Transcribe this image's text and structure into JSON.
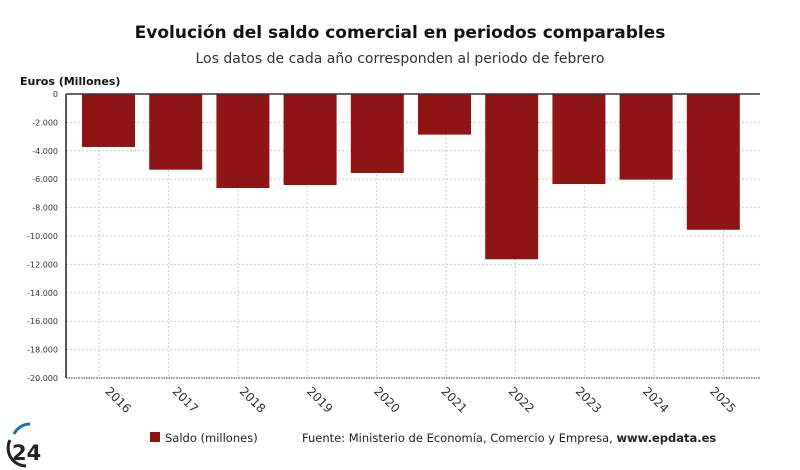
{
  "chart_data": {
    "type": "bar",
    "title": "Evolución del saldo comercial en periodos comparables",
    "subtitle": "Los datos de cada año corresponden al periodo de febrero",
    "ylabel": "Euros (Millones)",
    "xlabel": "",
    "categories": [
      "2016",
      "2017",
      "2018",
      "2019",
      "2020",
      "2021",
      "2022",
      "2023",
      "2024",
      "2025"
    ],
    "series": [
      {
        "name": "Saldo (millones)",
        "color": "#8e1416",
        "values": [
          -3730,
          -5330,
          -6620,
          -6410,
          -5560,
          -2860,
          -11640,
          -6340,
          -6030,
          -9560
        ]
      }
    ],
    "ylim": [
      -20000,
      0
    ],
    "yticks": [
      0,
      -2000,
      -4000,
      -6000,
      -8000,
      -10000,
      -12000,
      -14000,
      -16000,
      -18000,
      -20000
    ],
    "ytick_labels": [
      "0",
      "-2.000",
      "-4.000",
      "-6.000",
      "-8.000",
      "-10.000",
      "-12.000",
      "-14.000",
      "-16.000",
      "-18.000",
      "-20.000"
    ],
    "grid": true,
    "legend_position": "bottom",
    "source": "Fuente: Ministerio de Economía, Comercio y Empresa,",
    "source_link": "www.epdata.es"
  },
  "logo": {
    "text": "24",
    "accent": "#1a6fb5"
  }
}
